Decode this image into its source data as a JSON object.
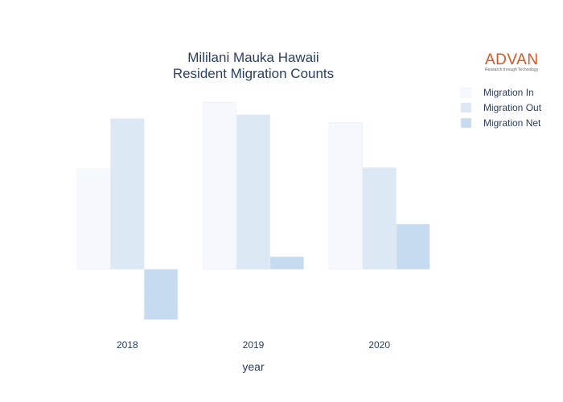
{
  "chart_data": {
    "type": "bar",
    "title": "Mililani Mauka Hawaii",
    "subtitle": "Resident Migration Counts",
    "xlabel": "year",
    "ylabel": "",
    "categories": [
      "2018",
      "2019",
      "2020"
    ],
    "series": [
      {
        "name": "Migration In",
        "values": [
          400,
          665,
          585
        ],
        "color": "#f5f8fd"
      },
      {
        "name": "Migration Out",
        "values": [
          600,
          615,
          405
        ],
        "color": "#dde8f5"
      },
      {
        "name": "Migration Net",
        "values": [
          -200,
          50,
          180
        ],
        "color": "#c6dbef"
      }
    ],
    "ylim": [
      -240,
      720
    ],
    "grid": false,
    "legend_position": "top-right"
  },
  "logo": {
    "name": "ADVAN",
    "tagline": "Research through Technology"
  }
}
